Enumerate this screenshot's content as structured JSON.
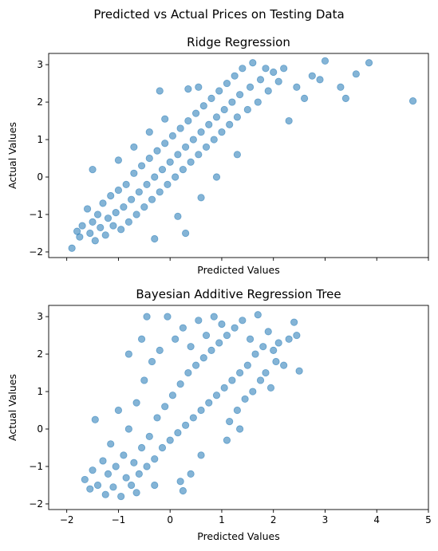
{
  "figure": {
    "suptitle": "Predicted vs Actual Prices on Testing Data",
    "point_color": "#1f77b4",
    "point_alpha": 0.55
  },
  "chart_data": [
    {
      "type": "scatter",
      "title": "Ridge Regression",
      "xlabel": "Predicted Values",
      "ylabel": "Actual Values",
      "xlim": [
        -2.35,
        5.0
      ],
      "ylim": [
        -2.15,
        3.3
      ],
      "xticks": [
        -2,
        -1,
        0,
        1,
        2,
        3,
        4,
        5
      ],
      "show_xticklabels": false,
      "yticks": [
        -2,
        -1,
        0,
        1,
        2,
        3
      ],
      "grid": false,
      "series": [
        {
          "points": [
            [
              -1.9,
              -1.9
            ],
            [
              -1.8,
              -1.45
            ],
            [
              -1.75,
              -1.6
            ],
            [
              -1.7,
              -1.3
            ],
            [
              -1.6,
              -0.85
            ],
            [
              -1.55,
              -1.5
            ],
            [
              -1.5,
              -1.2
            ],
            [
              -1.45,
              -1.7
            ],
            [
              -1.4,
              -1.0
            ],
            [
              -1.35,
              -1.35
            ],
            [
              -1.3,
              -0.7
            ],
            [
              -1.25,
              -1.55
            ],
            [
              -1.2,
              -1.1
            ],
            [
              -1.15,
              -0.5
            ],
            [
              -1.1,
              -1.3
            ],
            [
              -1.05,
              -0.95
            ],
            [
              -1.0,
              -0.35
            ],
            [
              -0.95,
              -1.4
            ],
            [
              -0.9,
              -0.8
            ],
            [
              -0.85,
              -0.2
            ],
            [
              -0.8,
              -1.2
            ],
            [
              -0.75,
              -0.6
            ],
            [
              -0.7,
              0.1
            ],
            [
              -0.65,
              -1.0
            ],
            [
              -0.6,
              -0.4
            ],
            [
              -0.55,
              0.3
            ],
            [
              -0.5,
              -0.8
            ],
            [
              -0.45,
              -0.2
            ],
            [
              -0.4,
              0.5
            ],
            [
              -0.35,
              -0.6
            ],
            [
              -0.3,
              0.0
            ],
            [
              -0.25,
              0.7
            ],
            [
              -0.2,
              -0.4
            ],
            [
              -0.15,
              0.2
            ],
            [
              -0.1,
              0.9
            ],
            [
              -0.05,
              -0.2
            ],
            [
              0.0,
              0.4
            ],
            [
              0.05,
              1.1
            ],
            [
              0.1,
              0.0
            ],
            [
              0.15,
              0.6
            ],
            [
              0.2,
              1.3
            ],
            [
              0.25,
              0.2
            ],
            [
              0.3,
              0.8
            ],
            [
              0.35,
              1.5
            ],
            [
              0.4,
              0.4
            ],
            [
              0.45,
              1.0
            ],
            [
              0.5,
              1.7
            ],
            [
              0.55,
              0.6
            ],
            [
              0.6,
              1.2
            ],
            [
              0.65,
              1.9
            ],
            [
              0.7,
              0.8
            ],
            [
              0.75,
              1.4
            ],
            [
              0.8,
              2.1
            ],
            [
              0.85,
              1.0
            ],
            [
              0.9,
              1.6
            ],
            [
              0.95,
              2.3
            ],
            [
              1.0,
              1.2
            ],
            [
              1.05,
              1.8
            ],
            [
              1.1,
              2.5
            ],
            [
              1.15,
              1.4
            ],
            [
              1.2,
              2.0
            ],
            [
              1.25,
              2.7
            ],
            [
              1.3,
              1.6
            ],
            [
              1.35,
              2.2
            ],
            [
              1.4,
              2.9
            ],
            [
              1.5,
              1.8
            ],
            [
              1.55,
              2.4
            ],
            [
              1.6,
              3.05
            ],
            [
              1.7,
              2.0
            ],
            [
              1.75,
              2.6
            ],
            [
              1.85,
              2.9
            ],
            [
              1.9,
              2.3
            ],
            [
              2.0,
              2.8
            ],
            [
              2.1,
              2.55
            ],
            [
              2.2,
              2.9
            ],
            [
              2.3,
              1.5
            ],
            [
              2.45,
              2.4
            ],
            [
              2.6,
              2.1
            ],
            [
              2.75,
              2.7
            ],
            [
              2.9,
              2.6
            ],
            [
              3.0,
              3.1
            ],
            [
              3.3,
              2.4
            ],
            [
              3.4,
              2.1
            ],
            [
              3.6,
              2.75
            ],
            [
              3.85,
              3.05
            ],
            [
              4.7,
              2.03
            ],
            [
              -0.7,
              0.8
            ],
            [
              -0.4,
              1.2
            ],
            [
              -0.1,
              1.55
            ],
            [
              0.35,
              2.35
            ],
            [
              0.55,
              2.4
            ],
            [
              -0.2,
              2.3
            ],
            [
              -1.5,
              0.2
            ],
            [
              -1.0,
              0.45
            ],
            [
              0.6,
              -0.55
            ],
            [
              0.9,
              0.0
            ],
            [
              1.3,
              0.6
            ],
            [
              0.3,
              -1.5
            ],
            [
              -0.3,
              -1.65
            ],
            [
              0.15,
              -1.05
            ]
          ]
        }
      ]
    },
    {
      "type": "scatter",
      "title": "Bayesian Additive Regression Tree",
      "xlabel": "Predicted Values",
      "ylabel": "Actual Values",
      "xlim": [
        -2.35,
        5.0
      ],
      "ylim": [
        -2.15,
        3.3
      ],
      "xticks": [
        -2,
        -1,
        0,
        1,
        2,
        3,
        4,
        5
      ],
      "show_xticklabels": true,
      "yticks": [
        -2,
        -1,
        0,
        1,
        2,
        3
      ],
      "grid": false,
      "series": [
        {
          "points": [
            [
              -1.65,
              -1.35
            ],
            [
              -1.55,
              -1.6
            ],
            [
              -1.5,
              -1.1
            ],
            [
              -1.45,
              0.25
            ],
            [
              -1.4,
              -1.5
            ],
            [
              -1.3,
              -0.85
            ],
            [
              -1.25,
              -1.75
            ],
            [
              -1.2,
              -1.2
            ],
            [
              -1.15,
              -0.4
            ],
            [
              -1.1,
              -1.55
            ],
            [
              -1.05,
              -1.0
            ],
            [
              -1.0,
              0.5
            ],
            [
              -0.95,
              -1.8
            ],
            [
              -0.9,
              -0.7
            ],
            [
              -0.85,
              -1.3
            ],
            [
              -0.8,
              0.0
            ],
            [
              -0.75,
              -1.5
            ],
            [
              -0.7,
              -0.9
            ],
            [
              -0.65,
              0.7
            ],
            [
              -0.6,
              -1.2
            ],
            [
              -0.55,
              -0.5
            ],
            [
              -0.5,
              1.3
            ],
            [
              -0.45,
              -1.0
            ],
            [
              -0.4,
              -0.2
            ],
            [
              -0.35,
              1.8
            ],
            [
              -0.3,
              -0.8
            ],
            [
              -0.25,
              0.3
            ],
            [
              -0.2,
              2.1
            ],
            [
              -0.15,
              -0.5
            ],
            [
              -0.1,
              0.6
            ],
            [
              -0.05,
              3.0
            ],
            [
              0.0,
              -0.3
            ],
            [
              0.05,
              0.9
            ],
            [
              0.1,
              2.4
            ],
            [
              0.15,
              -0.1
            ],
            [
              0.2,
              1.2
            ],
            [
              0.25,
              2.7
            ],
            [
              0.3,
              0.1
            ],
            [
              0.35,
              1.5
            ],
            [
              0.4,
              2.2
            ],
            [
              0.45,
              0.3
            ],
            [
              0.5,
              1.7
            ],
            [
              0.55,
              2.9
            ],
            [
              0.6,
              0.5
            ],
            [
              0.65,
              1.9
            ],
            [
              0.7,
              2.5
            ],
            [
              0.75,
              0.7
            ],
            [
              0.8,
              2.1
            ],
            [
              0.85,
              3.0
            ],
            [
              0.9,
              0.9
            ],
            [
              0.95,
              2.3
            ],
            [
              1.0,
              2.8
            ],
            [
              1.05,
              1.1
            ],
            [
              1.1,
              2.5
            ],
            [
              1.15,
              0.2
            ],
            [
              1.2,
              1.3
            ],
            [
              1.25,
              2.7
            ],
            [
              1.3,
              0.5
            ],
            [
              1.35,
              1.5
            ],
            [
              1.4,
              2.9
            ],
            [
              1.45,
              0.8
            ],
            [
              1.5,
              1.7
            ],
            [
              1.55,
              2.4
            ],
            [
              1.6,
              1.0
            ],
            [
              1.65,
              2.0
            ],
            [
              1.7,
              3.05
            ],
            [
              1.75,
              1.3
            ],
            [
              1.8,
              2.2
            ],
            [
              1.85,
              1.5
            ],
            [
              1.9,
              2.6
            ],
            [
              1.95,
              1.1
            ],
            [
              2.0,
              2.1
            ],
            [
              2.05,
              1.8
            ],
            [
              2.1,
              2.3
            ],
            [
              2.2,
              1.7
            ],
            [
              2.3,
              2.4
            ],
            [
              2.4,
              2.85
            ],
            [
              2.45,
              2.5
            ],
            [
              2.5,
              1.55
            ],
            [
              -0.45,
              3.0
            ],
            [
              -0.55,
              2.4
            ],
            [
              -0.8,
              2.0
            ],
            [
              0.4,
              -1.2
            ],
            [
              0.6,
              -0.7
            ],
            [
              0.2,
              -1.4
            ],
            [
              0.25,
              -1.65
            ],
            [
              -0.3,
              -1.5
            ],
            [
              -0.65,
              -1.7
            ],
            [
              1.1,
              -0.3
            ],
            [
              1.35,
              0.0
            ]
          ]
        }
      ]
    }
  ]
}
